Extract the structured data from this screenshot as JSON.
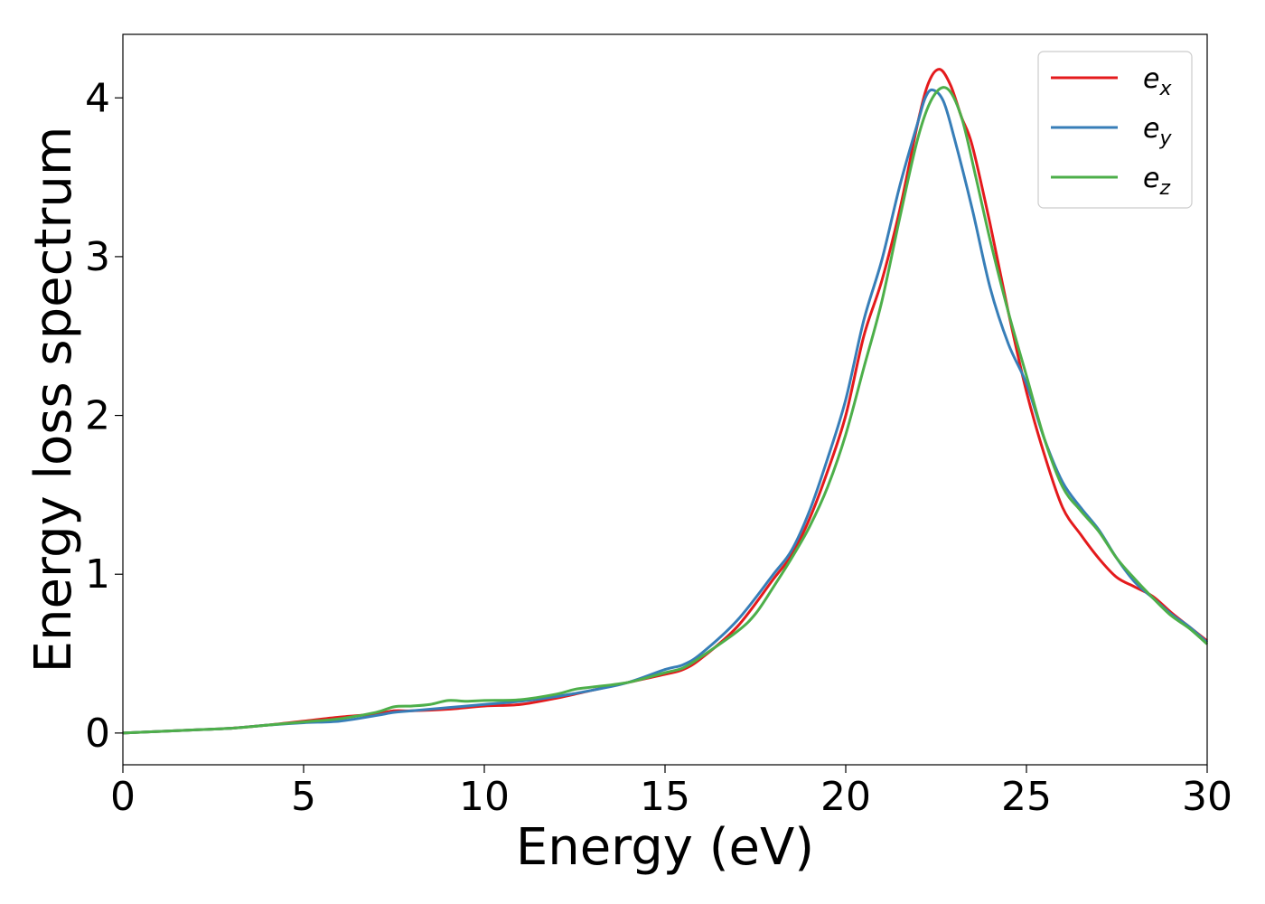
{
  "chart_data": {
    "type": "line",
    "title": "",
    "xlabel": "Energy (eV)",
    "ylabel": "Energy loss spectrum",
    "xlim": [
      0,
      30
    ],
    "ylim": [
      -0.2,
      4.4
    ],
    "x_ticks": [
      0,
      5,
      10,
      15,
      20,
      25,
      30
    ],
    "y_ticks": [
      0,
      1,
      2,
      3,
      4
    ],
    "grid": false,
    "legend_position": "top-right",
    "series": [
      {
        "name": "e_x",
        "label_main": "e",
        "label_sub": "x",
        "color": "#e41a1c",
        "points": [
          [
            0,
            0
          ],
          [
            1,
            0.01
          ],
          [
            2,
            0.02
          ],
          [
            3,
            0.03
          ],
          [
            4,
            0.05
          ],
          [
            5,
            0.075
          ],
          [
            6,
            0.1
          ],
          [
            7,
            0.12
          ],
          [
            7.5,
            0.14
          ],
          [
            8,
            0.14
          ],
          [
            9,
            0.15
          ],
          [
            10,
            0.17
          ],
          [
            11,
            0.18
          ],
          [
            12,
            0.22
          ],
          [
            13,
            0.27
          ],
          [
            14,
            0.32
          ],
          [
            15,
            0.37
          ],
          [
            15.5,
            0.4
          ],
          [
            16,
            0.47
          ],
          [
            17,
            0.67
          ],
          [
            18,
            0.97
          ],
          [
            18.5,
            1.12
          ],
          [
            19,
            1.35
          ],
          [
            19.5,
            1.65
          ],
          [
            20,
            2.0
          ],
          [
            20.5,
            2.5
          ],
          [
            21,
            2.85
          ],
          [
            21.5,
            3.3
          ],
          [
            22,
            3.85
          ],
          [
            22.3,
            4.1
          ],
          [
            22.6,
            4.18
          ],
          [
            22.9,
            4.08
          ],
          [
            23.2,
            3.88
          ],
          [
            23.5,
            3.7
          ],
          [
            24,
            3.2
          ],
          [
            24.5,
            2.65
          ],
          [
            25,
            2.15
          ],
          [
            25.5,
            1.75
          ],
          [
            26,
            1.42
          ],
          [
            26.5,
            1.25
          ],
          [
            27,
            1.1
          ],
          [
            27.5,
            0.98
          ],
          [
            28,
            0.92
          ],
          [
            28.5,
            0.86
          ],
          [
            29,
            0.76
          ],
          [
            29.5,
            0.67
          ],
          [
            30,
            0.58
          ]
        ]
      },
      {
        "name": "e_y",
        "label_main": "e",
        "label_sub": "y",
        "color": "#377eb8",
        "points": [
          [
            0,
            0
          ],
          [
            1,
            0.01
          ],
          [
            2,
            0.02
          ],
          [
            3,
            0.03
          ],
          [
            4,
            0.05
          ],
          [
            5,
            0.065
          ],
          [
            6,
            0.075
          ],
          [
            7,
            0.11
          ],
          [
            7.5,
            0.13
          ],
          [
            8,
            0.14
          ],
          [
            9,
            0.16
          ],
          [
            10,
            0.18
          ],
          [
            11,
            0.2
          ],
          [
            12,
            0.23
          ],
          [
            13,
            0.27
          ],
          [
            14,
            0.32
          ],
          [
            15,
            0.4
          ],
          [
            15.5,
            0.43
          ],
          [
            16,
            0.5
          ],
          [
            17,
            0.71
          ],
          [
            18,
            1.0
          ],
          [
            18.5,
            1.15
          ],
          [
            19,
            1.4
          ],
          [
            19.5,
            1.73
          ],
          [
            20,
            2.1
          ],
          [
            20.5,
            2.6
          ],
          [
            21,
            2.98
          ],
          [
            21.5,
            3.45
          ],
          [
            22,
            3.85
          ],
          [
            22.2,
            4.0
          ],
          [
            22.4,
            4.05
          ],
          [
            22.7,
            3.98
          ],
          [
            23,
            3.75
          ],
          [
            23.5,
            3.3
          ],
          [
            24,
            2.8
          ],
          [
            24.5,
            2.45
          ],
          [
            25,
            2.2
          ],
          [
            25.5,
            1.85
          ],
          [
            26,
            1.58
          ],
          [
            26.5,
            1.42
          ],
          [
            27,
            1.28
          ],
          [
            27.5,
            1.1
          ],
          [
            28,
            0.95
          ],
          [
            28.5,
            0.85
          ],
          [
            29,
            0.75
          ],
          [
            29.5,
            0.67
          ],
          [
            30,
            0.57
          ]
        ]
      },
      {
        "name": "e_z",
        "label_main": "e",
        "label_sub": "z",
        "color": "#4daf4a",
        "points": [
          [
            0,
            0
          ],
          [
            1,
            0.01
          ],
          [
            2,
            0.02
          ],
          [
            3,
            0.03
          ],
          [
            4,
            0.05
          ],
          [
            5,
            0.07
          ],
          [
            6,
            0.09
          ],
          [
            7,
            0.13
          ],
          [
            7.5,
            0.165
          ],
          [
            8,
            0.17
          ],
          [
            8.5,
            0.18
          ],
          [
            9,
            0.205
          ],
          [
            9.5,
            0.2
          ],
          [
            10,
            0.205
          ],
          [
            11,
            0.21
          ],
          [
            12,
            0.245
          ],
          [
            12.5,
            0.275
          ],
          [
            13,
            0.29
          ],
          [
            14,
            0.32
          ],
          [
            15,
            0.38
          ],
          [
            15.5,
            0.41
          ],
          [
            16,
            0.48
          ],
          [
            17,
            0.64
          ],
          [
            17.5,
            0.75
          ],
          [
            18,
            0.92
          ],
          [
            18.5,
            1.1
          ],
          [
            19,
            1.3
          ],
          [
            19.5,
            1.55
          ],
          [
            20,
            1.88
          ],
          [
            20.5,
            2.3
          ],
          [
            21,
            2.72
          ],
          [
            21.5,
            3.25
          ],
          [
            22,
            3.75
          ],
          [
            22.4,
            4.0
          ],
          [
            22.8,
            4.06
          ],
          [
            23.2,
            3.88
          ],
          [
            23.6,
            3.5
          ],
          [
            24,
            3.1
          ],
          [
            24.5,
            2.65
          ],
          [
            25,
            2.25
          ],
          [
            25.5,
            1.85
          ],
          [
            26,
            1.55
          ],
          [
            26.5,
            1.4
          ],
          [
            27,
            1.27
          ],
          [
            27.5,
            1.1
          ],
          [
            28,
            0.97
          ],
          [
            28.5,
            0.85
          ],
          [
            29,
            0.74
          ],
          [
            29.5,
            0.66
          ],
          [
            30,
            0.56
          ]
        ]
      }
    ]
  }
}
